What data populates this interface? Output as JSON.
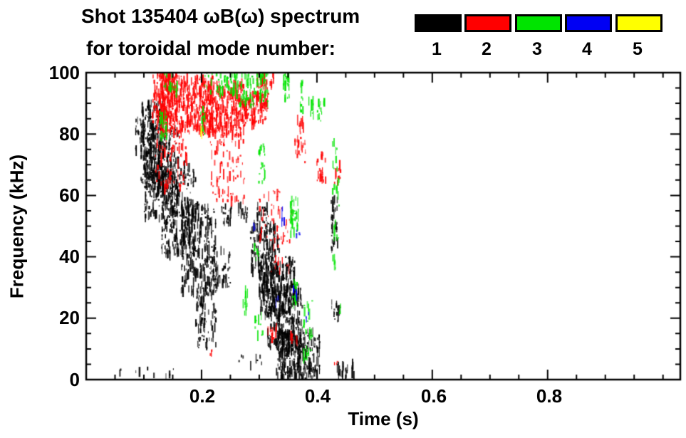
{
  "figure": {
    "title_line1": "Shot 135404 ωB(ω) spectrum",
    "title_line2": "for toroidal mode number:",
    "background": "#ffffff",
    "axis_color": "#000000"
  },
  "legend": {
    "modes": [
      {
        "label": "1",
        "color": "#000000"
      },
      {
        "label": "2",
        "color": "#ff0000"
      },
      {
        "label": "3",
        "color": "#00e400"
      },
      {
        "label": "4",
        "color": "#0000f4"
      },
      {
        "label": "5",
        "color": "#ffff00"
      }
    ]
  },
  "chart_data": {
    "type": "scatter",
    "title": "Shot 135404 ωB(ω) spectrum for toroidal mode number: 1 2 3 4 5",
    "xlabel": "Time (s)",
    "ylabel": "Frequency (kHz)",
    "xlim": [
      0.0,
      1.03
    ],
    "ylim": [
      0,
      100
    ],
    "x_major_ticks": [
      0.2,
      0.4,
      0.6,
      0.8
    ],
    "x_minor_step": 0.05,
    "y_major_ticks": [
      0,
      20,
      40,
      60,
      80,
      100
    ],
    "y_minor_step": 5,
    "x_tick_labels": [
      "0.2",
      "0.4",
      "0.6",
      "0.8"
    ],
    "y_tick_labels": [
      "0",
      "20",
      "40",
      "60",
      "80",
      "100"
    ],
    "grid": false,
    "legend_position": "top-right",
    "series": [
      {
        "name": "n=1",
        "mode": 1,
        "color": "#000000",
        "seed": 11,
        "clusters_format": [
          "t_min",
          "t_max",
          "f_min_kHz",
          "f_max_kHz",
          "n_points"
        ],
        "clusters": [
          [
            0.095,
            0.135,
            62,
            90,
            240
          ],
          [
            0.1,
            0.16,
            52,
            82,
            280
          ],
          [
            0.13,
            0.19,
            40,
            70,
            280
          ],
          [
            0.165,
            0.225,
            28,
            58,
            260
          ],
          [
            0.19,
            0.225,
            10,
            32,
            70
          ],
          [
            0.197,
            0.206,
            12,
            26,
            25
          ],
          [
            0.21,
            0.25,
            30,
            43,
            55
          ],
          [
            0.235,
            0.252,
            51,
            57,
            22
          ],
          [
            0.263,
            0.282,
            52,
            57,
            16
          ],
          [
            0.295,
            0.315,
            51,
            57,
            22
          ],
          [
            0.285,
            0.335,
            33,
            51,
            150
          ],
          [
            0.3,
            0.345,
            20,
            38,
            190
          ],
          [
            0.315,
            0.375,
            8,
            30,
            250
          ],
          [
            0.33,
            0.405,
            0,
            16,
            290
          ],
          [
            0.345,
            0.362,
            26,
            40,
            60
          ],
          [
            0.425,
            0.436,
            42,
            59,
            36
          ],
          [
            0.425,
            0.44,
            19,
            26,
            16
          ],
          [
            0.435,
            0.465,
            1,
            6,
            20
          ],
          [
            0.055,
            0.175,
            1,
            4,
            10
          ],
          [
            0.265,
            0.305,
            4,
            8,
            8
          ],
          [
            0.085,
            0.1,
            74,
            86,
            20
          ]
        ]
      },
      {
        "name": "n=2",
        "mode": 2,
        "color": "#ff0000",
        "seed": 22,
        "clusters_format": [
          "t_min",
          "t_max",
          "f_min_kHz",
          "f_max_kHz",
          "n_points"
        ],
        "clusters": [
          [
            0.115,
            0.158,
            84,
            100,
            190
          ],
          [
            0.13,
            0.22,
            80,
            99,
            400
          ],
          [
            0.2,
            0.275,
            79,
            97,
            320
          ],
          [
            0.12,
            0.175,
            62,
            84,
            85
          ],
          [
            0.215,
            0.275,
            58,
            78,
            75
          ],
          [
            0.275,
            0.315,
            83,
            93,
            110
          ],
          [
            0.295,
            0.325,
            92,
            100,
            36
          ],
          [
            0.3,
            0.36,
            45,
            62,
            40
          ],
          [
            0.315,
            0.33,
            11,
            17,
            10
          ],
          [
            0.35,
            0.368,
            12,
            15,
            8
          ],
          [
            0.362,
            0.38,
            70,
            85,
            32
          ],
          [
            0.4,
            0.416,
            64,
            74,
            22
          ],
          [
            0.43,
            0.441,
            64,
            71,
            10
          ],
          [
            0.215,
            0.219,
            8,
            10,
            3
          ],
          [
            0.32,
            0.352,
            35,
            52,
            26
          ],
          [
            0.43,
            0.436,
            4,
            6,
            3
          ]
        ]
      },
      {
        "name": "n=3",
        "mode": 3,
        "color": "#00e400",
        "seed": 33,
        "clusters_format": [
          "t_min",
          "t_max",
          "f_min_kHz",
          "f_max_kHz",
          "n_points"
        ],
        "clusters": [
          [
            0.128,
            0.14,
            79,
            89,
            28
          ],
          [
            0.135,
            0.158,
            93,
            100,
            18
          ],
          [
            0.198,
            0.206,
            80,
            89,
            12
          ],
          [
            0.205,
            0.262,
            93,
            100,
            50
          ],
          [
            0.26,
            0.315,
            89,
            100,
            85
          ],
          [
            0.298,
            0.31,
            63,
            77,
            20
          ],
          [
            0.27,
            0.28,
            21,
            30,
            12
          ],
          [
            0.29,
            0.3,
            39,
            44,
            7
          ],
          [
            0.293,
            0.306,
            14,
            22,
            9
          ],
          [
            0.342,
            0.352,
            91,
            100,
            22
          ],
          [
            0.354,
            0.368,
            47,
            60,
            40
          ],
          [
            0.358,
            0.368,
            23,
            32,
            11
          ],
          [
            0.369,
            0.376,
            87,
            98,
            13
          ],
          [
            0.377,
            0.392,
            6,
            27,
            26
          ],
          [
            0.386,
            0.394,
            84,
            91,
            9
          ],
          [
            0.401,
            0.413,
            84,
            91,
            12
          ],
          [
            0.427,
            0.439,
            44,
            79,
            22
          ],
          [
            0.427,
            0.433,
            36,
            41,
            5
          ],
          [
            0.439,
            0.444,
            21,
            25,
            4
          ]
        ]
      },
      {
        "name": "n=4",
        "mode": 4,
        "color": "#0000f4",
        "seed": 44,
        "clusters_format": [
          "t_min",
          "t_max",
          "f_min_kHz",
          "f_max_kHz",
          "n_points"
        ],
        "clusters": [
          [
            0.339,
            0.345,
            51,
            56,
            5
          ],
          [
            0.364,
            0.371,
            45,
            49,
            4
          ],
          [
            0.357,
            0.366,
            27,
            31,
            5
          ],
          [
            0.381,
            0.387,
            19,
            22,
            3
          ],
          [
            0.289,
            0.296,
            47,
            50,
            3
          ],
          [
            0.329,
            0.334,
            24,
            27,
            3
          ]
        ]
      },
      {
        "name": "n=5",
        "mode": 5,
        "color": "#ffff00",
        "seed": 55,
        "clusters_format": [
          "t_min",
          "t_max",
          "f_min_kHz",
          "f_max_kHz",
          "n_points"
        ],
        "clusters": [
          [
            0.198,
            0.201,
            79,
            81,
            2
          ]
        ]
      }
    ]
  }
}
